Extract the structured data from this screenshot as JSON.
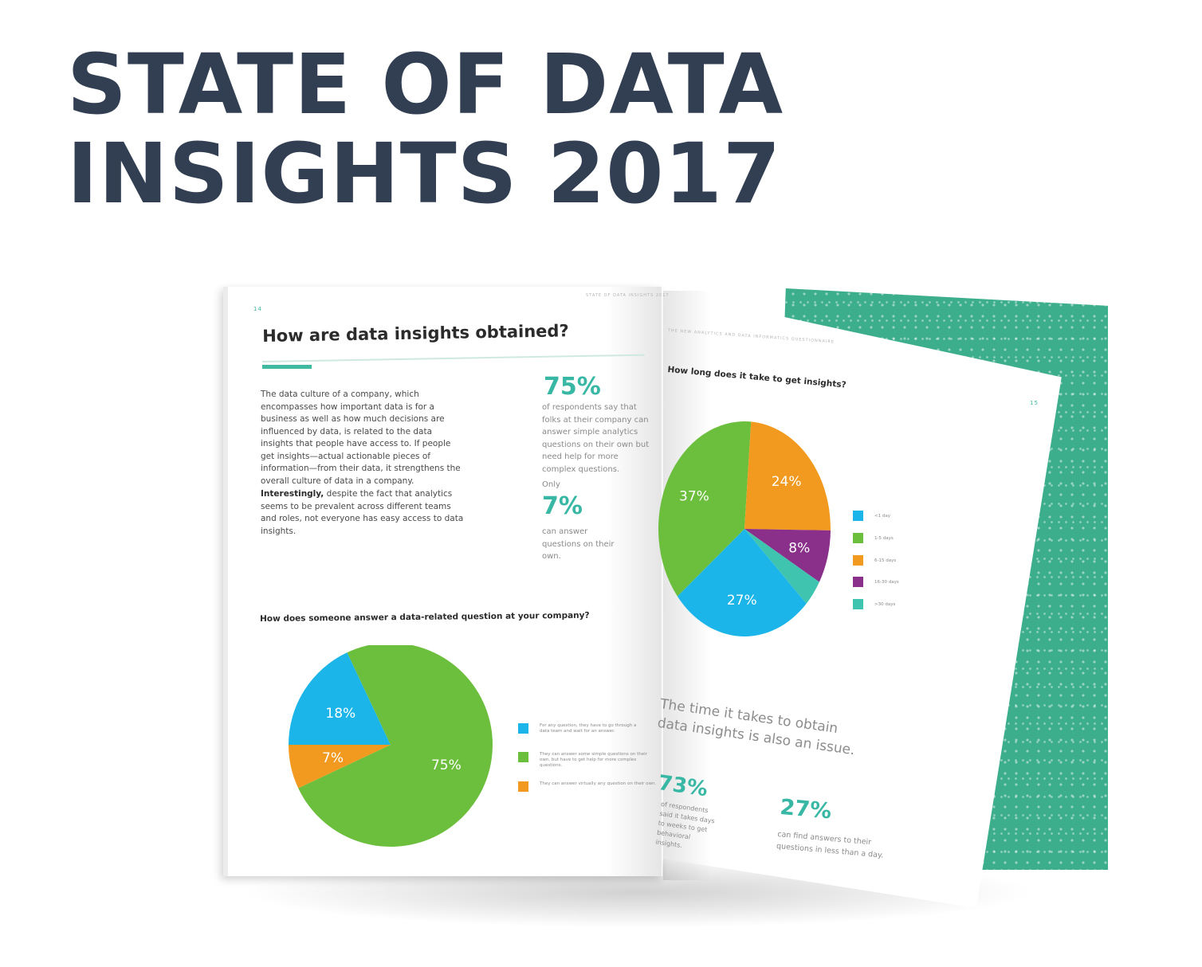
{
  "headline": {
    "line1": "STATE OF DATA",
    "line2": "INSIGHTS 2017"
  },
  "left_page": {
    "page_number": "14",
    "running_header": "STATE OF DATA INSIGHTS 2017",
    "title": "How are data insights obtained?",
    "paragraph1": "The data culture of a company, which encompasses how important data is for a business as well as how much decisions are influenced by data, is related to the data insights that people have access to. If people get insights—actual actionable pieces of information—from their data, it strengthens the overall culture of data in a company.",
    "paragraph2_lead": "Interestingly,",
    "paragraph2_rest": " despite the fact that analytics seems to be prevalent across different teams and roles, not everyone has easy access to data insights.",
    "stat1_value": "75%",
    "stat1_text": "of respondents say that folks at their company can answer simple analytics questions on their own but need help for more complex questions.",
    "stat2_prefix": "Only",
    "stat2_value": "7%",
    "stat2_text": "can answer questions on their own.",
    "chart_question": "How does someone answer a data-related question at your company?",
    "legend": [
      "For any question, they have to go through a data team and wait for an answer.",
      "They can answer some simple questions on their own, but have to get help for more complex questions.",
      "They can answer virtually any question on their own."
    ]
  },
  "right_page": {
    "page_number": "15",
    "running_header": "THE NEW ANALYTICS AND DATA INFORMATICS QUESTIONNAIRE",
    "chart_question": "How long does it take to get insights?",
    "legend": [
      "<1 day",
      "1-5 days",
      "6-15 days",
      "16-30 days",
      ">30 days"
    ],
    "callout_line1": "The time it takes to obtain",
    "callout_line2": "data insights is also an issue.",
    "stat1_value": "73%",
    "stat1_text": "of respondents said it takes days to weeks to get behavioral insights.",
    "stat2_value": "27%",
    "stat2_text1": "can find answers to their",
    "stat2_text2": "questions in less than a day."
  },
  "colors": {
    "headline": "#323f52",
    "blue": "#1cb5ea",
    "green": "#6cbf3c",
    "orange": "#f29a1f",
    "purple": "#8a2f8a",
    "teal": "#3fc4b0",
    "cover": "#3dae8c"
  },
  "chart_data": [
    {
      "type": "pie",
      "title": "How does someone answer a data-related question at your company?",
      "categories": [
        "For any question, they have to go through a data team and wait for an answer.",
        "They can answer some simple questions on their own, but have to get help for more complex questions.",
        "They can answer virtually any question on their own."
      ],
      "values": [
        18,
        75,
        7
      ],
      "labels": [
        "18%",
        "75%",
        "7%"
      ],
      "colors": [
        "#1cb5ea",
        "#6cbf3c",
        "#f29a1f"
      ]
    },
    {
      "type": "pie",
      "title": "How long does it take to get insights?",
      "categories": [
        "<1 day",
        "1-5 days",
        "6-15 days",
        "16-30 days",
        ">30 days"
      ],
      "values": [
        27,
        37,
        24,
        8,
        4
      ],
      "labels": [
        "27%",
        "37%",
        "24%",
        "8%",
        "4%"
      ],
      "colors": [
        "#1cb5ea",
        "#6cbf3c",
        "#f29a1f",
        "#8a2f8a",
        "#3fc4b0"
      ]
    }
  ]
}
